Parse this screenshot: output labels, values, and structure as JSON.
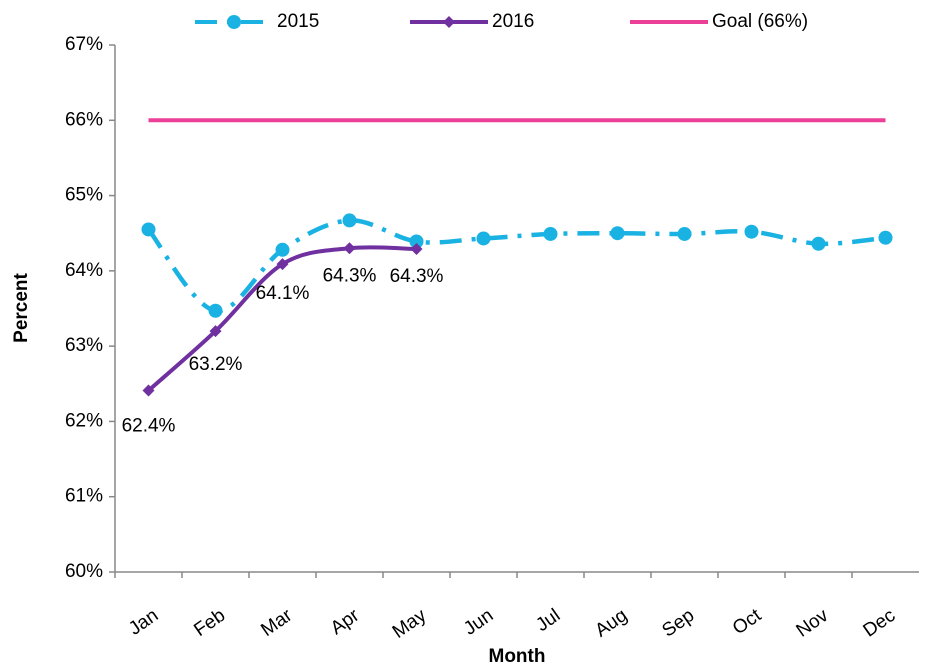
{
  "chart_data": {
    "type": "line",
    "x_label": "Month",
    "y_label": "Percent",
    "categories": [
      "Jan",
      "Feb",
      "Mar",
      "Apr",
      "May",
      "Jun",
      "Jul",
      "Aug",
      "Sep",
      "Oct",
      "Nov",
      "Dec"
    ],
    "series": [
      {
        "name": "2015",
        "color": "#1ab2e3",
        "dash": true,
        "marker": "circle",
        "values": [
          64.55,
          63.47,
          64.28,
          64.67,
          64.39,
          64.43,
          64.49,
          64.5,
          64.49,
          64.52,
          64.36,
          64.44
        ]
      },
      {
        "name": "2016",
        "color": "#7030a0",
        "dash": false,
        "marker": "diamond",
        "values": [
          62.41,
          63.2,
          64.09,
          64.3,
          64.29,
          null,
          null,
          null,
          null,
          null,
          null,
          null
        ],
        "value_labels": [
          "62.4%",
          "63.2%",
          "64.1%",
          "64.3%",
          "64.3%",
          null,
          null,
          null,
          null,
          null,
          null,
          null
        ]
      },
      {
        "name": "Goal (66%)",
        "color": "#ec3f97",
        "dash": false,
        "marker": "none",
        "values": [
          66,
          66,
          66,
          66,
          66,
          66,
          66,
          66,
          66,
          66,
          66,
          66
        ]
      }
    ],
    "ylim": [
      60,
      67
    ],
    "yticks": [
      {
        "value": 60,
        "label": "60%"
      },
      {
        "value": 61,
        "label": "61%"
      },
      {
        "value": 62,
        "label": "62%"
      },
      {
        "value": 63,
        "label": "63%"
      },
      {
        "value": 64,
        "label": "64%"
      },
      {
        "value": 65,
        "label": "65%"
      },
      {
        "value": 66,
        "label": "66%"
      },
      {
        "value": 67,
        "label": "67%"
      }
    ],
    "grid": false,
    "legend": "top"
  }
}
